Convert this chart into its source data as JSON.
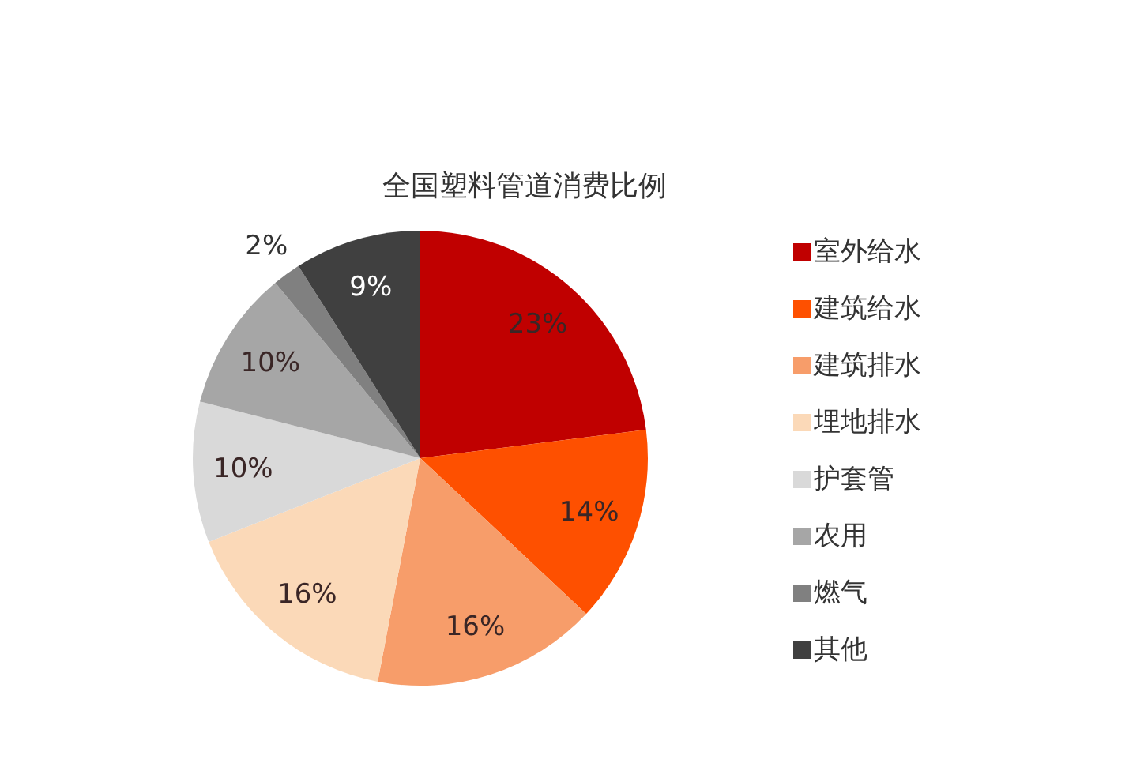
{
  "chart_data": {
    "type": "pie",
    "title": "全国塑料管道消费比例",
    "categories": [
      "室外给水",
      "建筑给水",
      "建筑排水",
      "埋地排水",
      "护套管",
      "农用",
      "燃气",
      "其他"
    ],
    "values": [
      23,
      14,
      16,
      16,
      10,
      10,
      2,
      9
    ],
    "colors": [
      "#c00000",
      "#fe5000",
      "#f79d6a",
      "#fbd9b8",
      "#d9d9d9",
      "#a6a6a6",
      "#808080",
      "#404040"
    ],
    "value_labels": [
      "23%",
      "14%",
      "16%",
      "16%",
      "10%",
      "10%",
      "2%",
      "9%"
    ],
    "legend": "right"
  }
}
